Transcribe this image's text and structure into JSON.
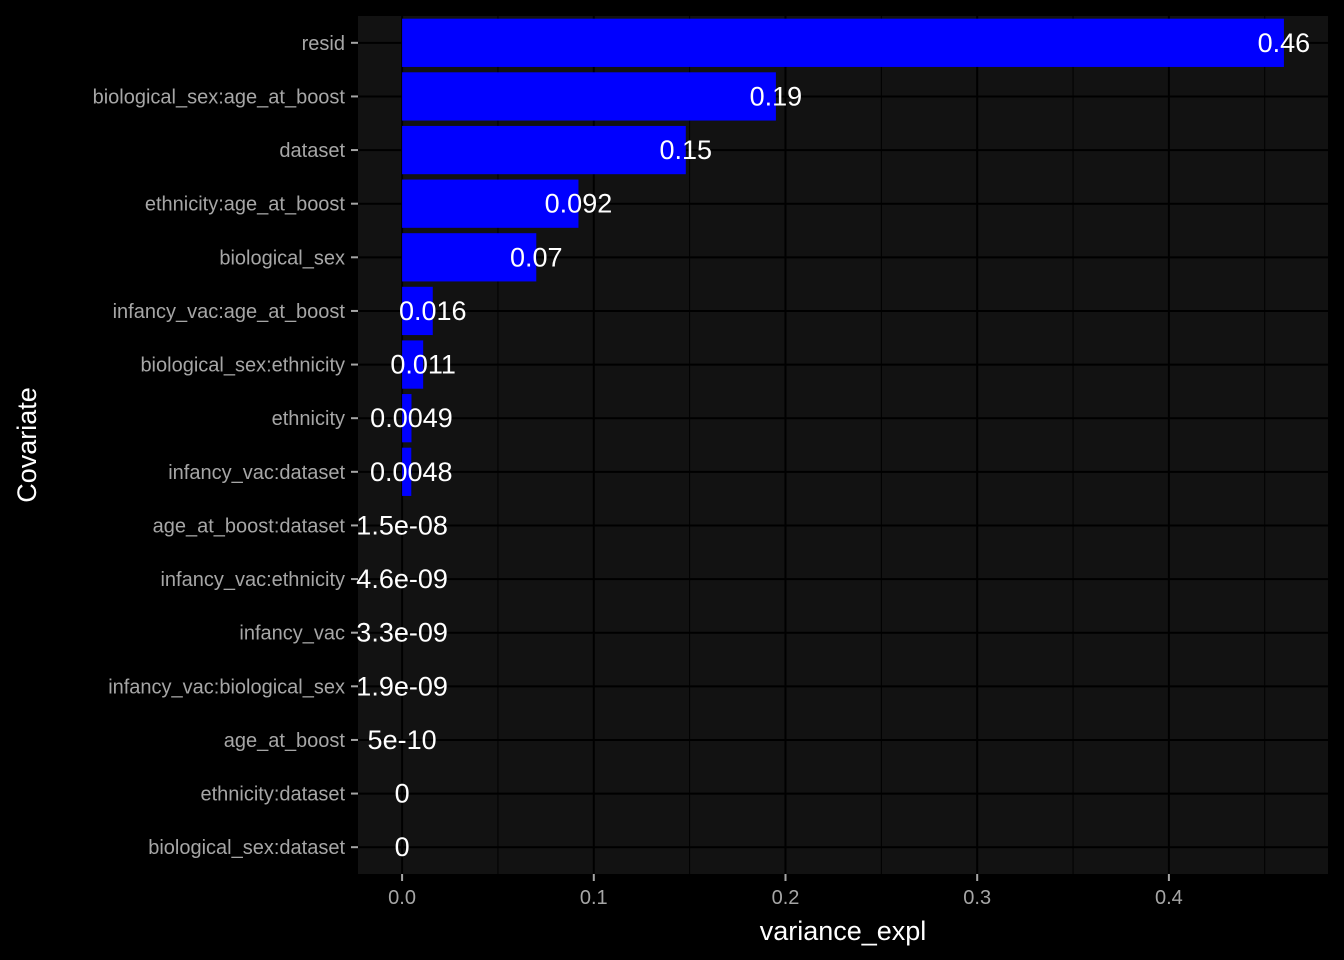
{
  "chart_data": {
    "type": "bar",
    "orientation": "horizontal",
    "xlabel": "variance_expl",
    "ylabel": "Covariate",
    "xlim": [
      -0.023,
      0.483
    ],
    "x_ticks": [
      "0.0",
      "0.1",
      "0.2",
      "0.3",
      "0.4"
    ],
    "x_tick_values": [
      0.0,
      0.1,
      0.2,
      0.3,
      0.4
    ],
    "grid": true,
    "bar_color": "#0000ff",
    "panel_background": "#121212",
    "background": "#000000",
    "categories": [
      "resid",
      "biological_sex:age_at_boost",
      "dataset",
      "ethnicity:age_at_boost",
      "biological_sex",
      "infancy_vac:age_at_boost",
      "biological_sex:ethnicity",
      "ethnicity",
      "infancy_vac:dataset",
      "age_at_boost:dataset",
      "infancy_vac:ethnicity",
      "infancy_vac",
      "infancy_vac:biological_sex",
      "age_at_boost",
      "ethnicity:dataset",
      "biological_sex:dataset"
    ],
    "values": [
      0.46,
      0.195,
      0.148,
      0.092,
      0.07,
      0.016,
      0.011,
      0.0049,
      0.0048,
      1.5e-08,
      4.6e-09,
      3.3e-09,
      1.9e-09,
      5e-10,
      0,
      0
    ],
    "labels": [
      "0.46",
      "0.19",
      "0.15",
      "0.092",
      "0.07",
      "0.016",
      "0.011",
      "0.0049",
      "0.0048",
      "1.5e-08",
      "4.6e-09",
      "3.3e-09",
      "1.9e-09",
      "5e-10",
      "0",
      "0"
    ]
  }
}
